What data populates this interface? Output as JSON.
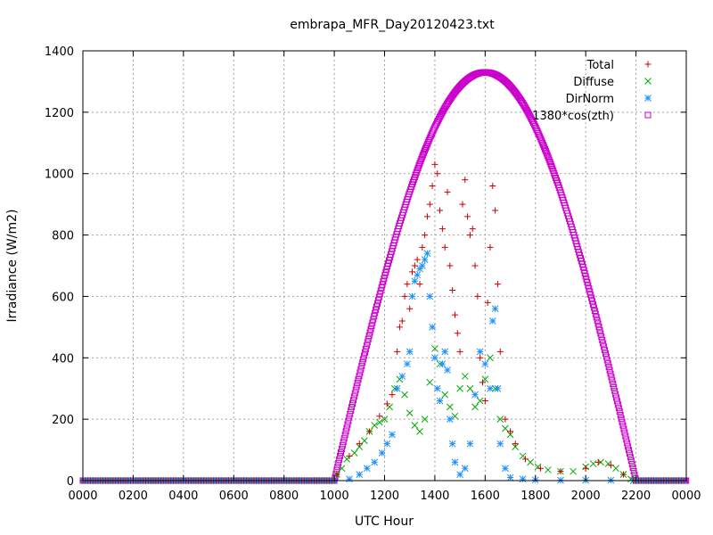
{
  "chart_data": {
    "type": "scatter",
    "title": "embrapa_MFR_Day20120423.txt",
    "xlabel": "UTC Hour",
    "ylabel": "Irradiance (W/m2)",
    "xlim": [
      0,
      24
    ],
    "ylim": [
      0,
      1400
    ],
    "x_ticks": [
      {
        "value": 0,
        "label": "0000"
      },
      {
        "value": 2,
        "label": "0200"
      },
      {
        "value": 4,
        "label": "0400"
      },
      {
        "value": 6,
        "label": "0600"
      },
      {
        "value": 8,
        "label": "0800"
      },
      {
        "value": 10,
        "label": "1000"
      },
      {
        "value": 12,
        "label": "1200"
      },
      {
        "value": 14,
        "label": "1400"
      },
      {
        "value": 16,
        "label": "1600"
      },
      {
        "value": 18,
        "label": "1800"
      },
      {
        "value": 20,
        "label": "2000"
      },
      {
        "value": 22,
        "label": "2200"
      },
      {
        "value": 24,
        "label": "0000"
      }
    ],
    "y_ticks": [
      0,
      200,
      400,
      600,
      800,
      1000,
      1200,
      1400
    ],
    "grid": true,
    "legend_position": "top-right",
    "series": [
      {
        "name": "Total",
        "marker": "plus",
        "color": "#cc0000",
        "points": [
          [
            10.1,
            20
          ],
          [
            10.6,
            80
          ],
          [
            11.0,
            120
          ],
          [
            11.4,
            160
          ],
          [
            11.8,
            210
          ],
          [
            12.1,
            250
          ],
          [
            12.3,
            280
          ],
          [
            12.5,
            420
          ],
          [
            12.6,
            500
          ],
          [
            12.7,
            520
          ],
          [
            12.8,
            600
          ],
          [
            12.9,
            640
          ],
          [
            13.0,
            560
          ],
          [
            13.1,
            680
          ],
          [
            13.2,
            700
          ],
          [
            13.3,
            720
          ],
          [
            13.4,
            640
          ],
          [
            13.5,
            760
          ],
          [
            13.6,
            800
          ],
          [
            13.7,
            860
          ],
          [
            13.8,
            900
          ],
          [
            13.9,
            960
          ],
          [
            14.0,
            1030
          ],
          [
            14.1,
            1000
          ],
          [
            14.2,
            880
          ],
          [
            14.3,
            820
          ],
          [
            14.4,
            760
          ],
          [
            14.5,
            940
          ],
          [
            14.6,
            700
          ],
          [
            14.7,
            620
          ],
          [
            14.8,
            540
          ],
          [
            14.9,
            480
          ],
          [
            15.0,
            420
          ],
          [
            15.1,
            900
          ],
          [
            15.2,
            980
          ],
          [
            15.3,
            860
          ],
          [
            15.4,
            800
          ],
          [
            15.5,
            820
          ],
          [
            15.6,
            700
          ],
          [
            15.7,
            600
          ],
          [
            15.8,
            400
          ],
          [
            15.9,
            320
          ],
          [
            16.0,
            260
          ],
          [
            16.1,
            580
          ],
          [
            16.2,
            760
          ],
          [
            16.3,
            960
          ],
          [
            16.4,
            880
          ],
          [
            16.5,
            640
          ],
          [
            16.6,
            420
          ],
          [
            16.8,
            200
          ],
          [
            17.0,
            160
          ],
          [
            17.2,
            120
          ],
          [
            17.6,
            70
          ],
          [
            18.2,
            40
          ],
          [
            19.0,
            30
          ],
          [
            20.0,
            40
          ],
          [
            20.5,
            60
          ],
          [
            21.0,
            50
          ],
          [
            21.5,
            20
          ]
        ]
      },
      {
        "name": "Diffuse",
        "marker": "cross",
        "color": "#00aa00",
        "points": [
          [
            10.1,
            20
          ],
          [
            10.3,
            40
          ],
          [
            10.5,
            70
          ],
          [
            10.8,
            90
          ],
          [
            11.0,
            110
          ],
          [
            11.2,
            130
          ],
          [
            11.4,
            160
          ],
          [
            11.6,
            180
          ],
          [
            11.8,
            190
          ],
          [
            12.0,
            200
          ],
          [
            12.2,
            240
          ],
          [
            12.4,
            300
          ],
          [
            12.6,
            330
          ],
          [
            12.8,
            280
          ],
          [
            13.0,
            220
          ],
          [
            13.2,
            180
          ],
          [
            13.4,
            160
          ],
          [
            13.6,
            200
          ],
          [
            13.8,
            320
          ],
          [
            14.0,
            430
          ],
          [
            14.2,
            380
          ],
          [
            14.4,
            280
          ],
          [
            14.6,
            240
          ],
          [
            14.8,
            210
          ],
          [
            15.0,
            300
          ],
          [
            15.2,
            340
          ],
          [
            15.4,
            300
          ],
          [
            15.6,
            240
          ],
          [
            15.8,
            260
          ],
          [
            16.0,
            330
          ],
          [
            16.2,
            400
          ],
          [
            16.4,
            300
          ],
          [
            16.6,
            200
          ],
          [
            16.8,
            170
          ],
          [
            17.0,
            150
          ],
          [
            17.2,
            110
          ],
          [
            17.5,
            80
          ],
          [
            17.8,
            60
          ],
          [
            18.1,
            45
          ],
          [
            18.5,
            35
          ],
          [
            19.0,
            30
          ],
          [
            19.5,
            30
          ],
          [
            20.0,
            45
          ],
          [
            20.3,
            55
          ],
          [
            20.6,
            60
          ],
          [
            20.9,
            55
          ],
          [
            21.2,
            40
          ],
          [
            21.5,
            20
          ],
          [
            21.8,
            5
          ]
        ]
      },
      {
        "name": "DirNorm",
        "marker": "star",
        "color": "#1e90ff",
        "points": [
          [
            10.6,
            5
          ],
          [
            11.0,
            20
          ],
          [
            11.3,
            40
          ],
          [
            11.6,
            60
          ],
          [
            11.9,
            90
          ],
          [
            12.1,
            120
          ],
          [
            12.3,
            150
          ],
          [
            12.5,
            300
          ],
          [
            12.7,
            340
          ],
          [
            12.9,
            380
          ],
          [
            13.0,
            420
          ],
          [
            13.1,
            600
          ],
          [
            13.2,
            650
          ],
          [
            13.3,
            670
          ],
          [
            13.4,
            690
          ],
          [
            13.5,
            700
          ],
          [
            13.6,
            720
          ],
          [
            13.7,
            740
          ],
          [
            13.8,
            600
          ],
          [
            13.9,
            500
          ],
          [
            14.0,
            400
          ],
          [
            14.1,
            300
          ],
          [
            14.2,
            260
          ],
          [
            14.3,
            380
          ],
          [
            14.4,
            420
          ],
          [
            14.5,
            360
          ],
          [
            14.6,
            200
          ],
          [
            14.7,
            120
          ],
          [
            14.8,
            60
          ],
          [
            15.0,
            20
          ],
          [
            15.2,
            40
          ],
          [
            15.4,
            120
          ],
          [
            15.6,
            280
          ],
          [
            15.8,
            420
          ],
          [
            16.0,
            380
          ],
          [
            16.2,
            300
          ],
          [
            16.3,
            520
          ],
          [
            16.4,
            560
          ],
          [
            16.5,
            300
          ],
          [
            16.6,
            120
          ],
          [
            16.8,
            40
          ],
          [
            17.0,
            10
          ],
          [
            17.5,
            5
          ],
          [
            18.0,
            2
          ],
          [
            19.0,
            1
          ],
          [
            20.0,
            1
          ],
          [
            21.0,
            1
          ]
        ]
      },
      {
        "name": "1380*cos(zth)",
        "marker": "square",
        "color": "#cc00cc",
        "curve": {
          "peak": 1330,
          "center": 16.0,
          "rise": 10.0,
          "set": 22.0
        }
      }
    ]
  }
}
